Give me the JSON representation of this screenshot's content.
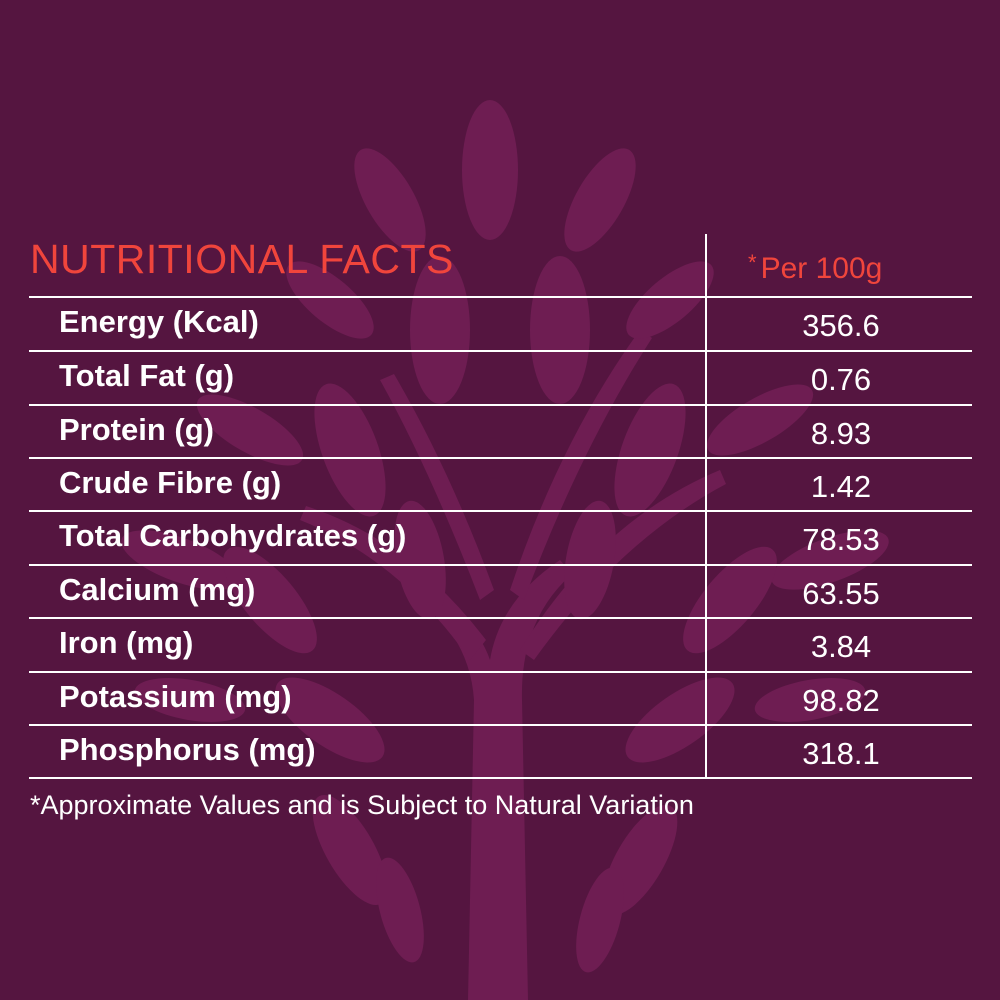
{
  "title": "NUTRITIONAL FACTS",
  "per_label": {
    "star": "*",
    "text": "Per 100g"
  },
  "rows": [
    {
      "name": "Energy (Kcal)",
      "value": "356.6"
    },
    {
      "name": "Total Fat (g)",
      "value": "0.76"
    },
    {
      "name": "Protein (g)",
      "value": "8.93"
    },
    {
      "name": "Crude Fibre (g)",
      "value": "1.42"
    },
    {
      "name": "Total Carbohydrates (g)",
      "value": "78.53"
    },
    {
      "name": "Calcium (mg)",
      "value": "63.55"
    },
    {
      "name": "Iron (mg)",
      "value": "3.84"
    },
    {
      "name": "Potassium (mg)",
      "value": "98.82"
    },
    {
      "name": "Phosphorus (mg)",
      "value": "318.1"
    }
  ],
  "footnote": "*Approximate Values and is Subject to Natural Variation",
  "colors": {
    "background": "#551540",
    "leaf": "#6e1d52",
    "accent": "#f0453c",
    "text": "#ffffff"
  }
}
